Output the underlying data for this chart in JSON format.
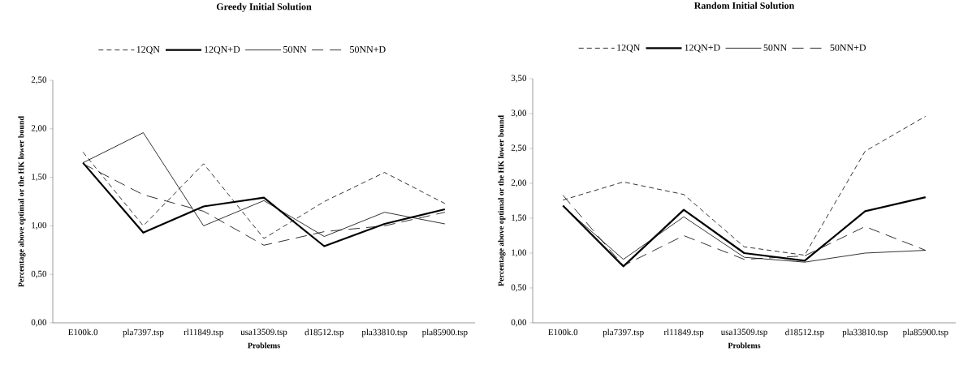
{
  "chart_data": [
    {
      "type": "line",
      "title": "Greedy Initial Solution",
      "xlabel": "Problems",
      "ylabel": "Percentage above optimal or the HK lower bound",
      "categories": [
        "E100k.0",
        "pla7397.tsp",
        "rl11849.tsp",
        "usa13509.tsp",
        "d18512.tsp",
        "pla33810.tsp",
        "pla85900.tsp"
      ],
      "series": [
        {
          "name": "12QN",
          "color": "#000000",
          "line_style": "dashed",
          "values": [
            1.76,
            1.0,
            1.64,
            0.87,
            1.25,
            1.55,
            1.23
          ]
        },
        {
          "name": "12QN+D",
          "color": "#000000",
          "line_style": "solid",
          "values": [
            1.65,
            0.93,
            1.2,
            1.29,
            0.79,
            1.02,
            1.17
          ]
        },
        {
          "name": "50NN",
          "color": "#000000",
          "line_style": "solid",
          "values": [
            1.65,
            1.96,
            1.0,
            1.26,
            0.89,
            1.14,
            1.02
          ]
        },
        {
          "name": "50NN+D",
          "color": "#000000",
          "line_style": "dashed",
          "values": [
            1.64,
            1.32,
            1.15,
            0.8,
            0.94,
            1.0,
            1.14
          ]
        }
      ],
      "ylim": [
        0,
        2.5
      ],
      "yticks": [
        {
          "value": 0,
          "label": "0,00"
        },
        {
          "value": 0.5,
          "label": "0,50"
        },
        {
          "value": 1.0,
          "label": "1,00"
        },
        {
          "value": 1.5,
          "label": "1,50"
        },
        {
          "value": 2.0,
          "label": "2,00"
        },
        {
          "value": 2.5,
          "label": "2,50"
        }
      ],
      "legend": "top",
      "grid": false,
      "marker": "none"
    },
    {
      "type": "line",
      "title": "Random Initial Solution",
      "xlabel": "Problems",
      "ylabel": "Percentage above optimal or the HK lower bound",
      "categories": [
        "E100k.0",
        "pla7397.tsp",
        "rl11849.tsp",
        "usa13509.tsp",
        "d18512.tsp",
        "pla33810.tsp",
        "pla85900.tsp"
      ],
      "series": [
        {
          "name": "12QN",
          "color": "#000000",
          "line_style": "dashed",
          "values": [
            1.76,
            2.02,
            1.84,
            1.09,
            0.97,
            2.46,
            2.96
          ]
        },
        {
          "name": "12QN+D",
          "color": "#000000",
          "line_style": "solid",
          "values": [
            1.68,
            0.81,
            1.62,
            1.0,
            0.89,
            1.6,
            1.8
          ]
        },
        {
          "name": "50NN",
          "color": "#000000",
          "line_style": "solid",
          "values": [
            1.67,
            0.91,
            1.52,
            0.94,
            0.87,
            1.0,
            1.04
          ]
        },
        {
          "name": "50NN+D",
          "color": "#000000",
          "line_style": "dashed",
          "values": [
            1.83,
            0.82,
            1.25,
            0.91,
            0.96,
            1.38,
            1.04
          ]
        }
      ],
      "ylim": [
        0,
        3.5
      ],
      "yticks": [
        {
          "value": 0,
          "label": "0,00"
        },
        {
          "value": 0.5,
          "label": "0,50"
        },
        {
          "value": 1.0,
          "label": "1,00"
        },
        {
          "value": 1.5,
          "label": "1,50"
        },
        {
          "value": 2.0,
          "label": "2,00"
        },
        {
          "value": 2.5,
          "label": "2,50"
        },
        {
          "value": 3.0,
          "label": "3,00"
        },
        {
          "value": 3.5,
          "label": "3,50"
        }
      ],
      "legend": "top",
      "grid": false,
      "marker": "none"
    }
  ]
}
